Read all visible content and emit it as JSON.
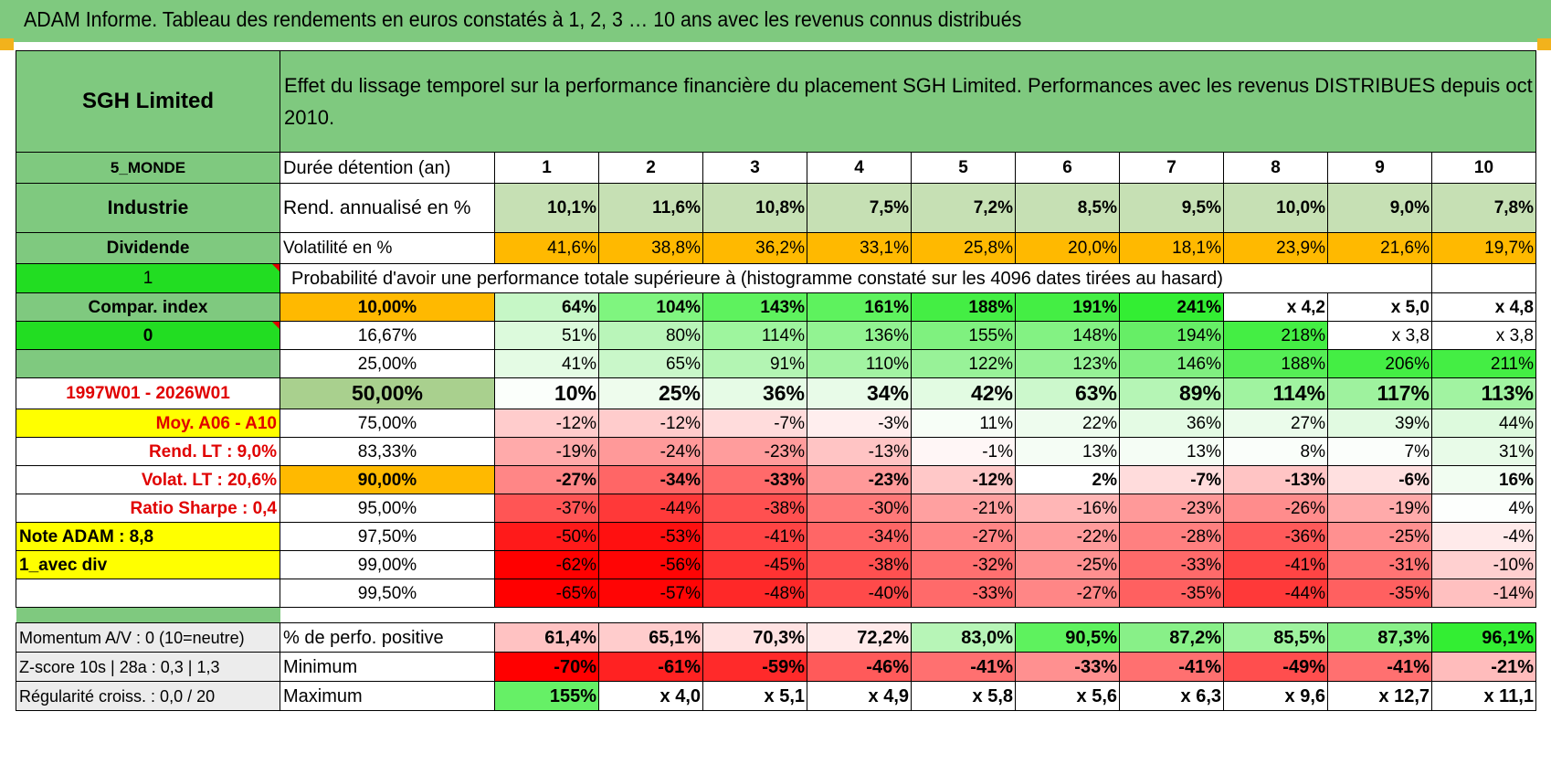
{
  "title": "ADAM Informe. Tableau des rendements en euros constatés à 1, 2, 3 … 10 ans avec les revenus connus distribués",
  "header": {
    "fund": "SGH Limited",
    "description": "Effet du lissage temporel sur la performance financière du placement SGH Limited. Performances avec les revenus DISTRIBUES depuis oct 2010."
  },
  "left_labels": {
    "zone": "5_MONDE",
    "sector": "Industrie",
    "income": "Dividende",
    "flag1": "1",
    "compar": "Compar. index",
    "flag0": "0",
    "period": "1997W01 - 2026W01",
    "moy": "Moy. A06 - A10",
    "rend_lt": "Rend. LT :    9,0%",
    "volat_lt": "Volat. LT :    20,6%",
    "sharpe": "Ratio Sharpe :     0,4",
    "note": "Note ADAM : 8,8",
    "mode": "1_avec div"
  },
  "durations": {
    "label": "Durée détention (an)",
    "years": [
      "1",
      "2",
      "3",
      "4",
      "5",
      "6",
      "7",
      "8",
      "9",
      "10"
    ]
  },
  "rendement": {
    "label": "Rend. annualisé en %",
    "values": [
      "10,1%",
      "11,6%",
      "10,8%",
      "7,5%",
      "7,2%",
      "8,5%",
      "9,5%",
      "10,0%",
      "9,0%",
      "7,8%"
    ]
  },
  "volatilite": {
    "label": "Volatilité en %",
    "values": [
      "41,6%",
      "38,8%",
      "36,2%",
      "33,1%",
      "25,8%",
      "20,0%",
      "18,1%",
      "23,9%",
      "21,6%",
      "19,7%"
    ]
  },
  "probability_title": "Probabilité d'avoir une performance totale supérieure à (histogramme constaté sur les 4096 dates tirées au hasard)",
  "prob_rows": [
    {
      "p": "10,00%",
      "values": [
        "64%",
        "104%",
        "143%",
        "161%",
        "188%",
        "191%",
        "241%",
        "x 4,2",
        "x 5,0",
        "x 4,8"
      ],
      "colors": [
        "#c6f7c6",
        "#7ff57f",
        "#5ef25e",
        "#5ef25e",
        "#44ee44",
        "#44ee44",
        "#33ee33",
        "#ffffff",
        "#ffffff",
        "#ffffff"
      ]
    },
    {
      "p": "16,67%",
      "values": [
        "51%",
        "80%",
        "114%",
        "136%",
        "155%",
        "148%",
        "194%",
        "218%",
        "x 3,8",
        "x 3,8"
      ],
      "colors": [
        "#dcfadc",
        "#b9f5b9",
        "#9ef59e",
        "#92f392",
        "#7ff17f",
        "#83f283",
        "#66ee66",
        "#44ee44",
        "#ffffff",
        "#ffffff"
      ]
    },
    {
      "p": "25,00%",
      "values": [
        "41%",
        "65%",
        "91%",
        "110%",
        "122%",
        "123%",
        "146%",
        "188%",
        "206%",
        "211%"
      ],
      "colors": [
        "#e4fbe4",
        "#c9f7c9",
        "#b3f5b3",
        "#a2f3a2",
        "#98f298",
        "#96f296",
        "#80ef80",
        "#55ee55",
        "#44ee44",
        "#44ee44"
      ]
    },
    {
      "p": "50,00%",
      "values": [
        "10%",
        "25%",
        "36%",
        "34%",
        "42%",
        "63%",
        "89%",
        "114%",
        "117%",
        "113%"
      ],
      "colors": [
        "#fbfffb",
        "#eefced",
        "#e6fbe6",
        "#e8fbe8",
        "#e2fbe2",
        "#ccf8cc",
        "#b5f5b5",
        "#a0f3a0",
        "#9ef29e",
        "#a1f3a1"
      ]
    },
    {
      "p": "75,00%",
      "values": [
        "-12%",
        "-12%",
        "-7%",
        "-3%",
        "11%",
        "22%",
        "36%",
        "27%",
        "39%",
        "44%"
      ],
      "colors": [
        "#ffcccc",
        "#ffcccc",
        "#ffdcdc",
        "#ffeeee",
        "#f7fef7",
        "#eefcee",
        "#e4fbe4",
        "#ebfceb",
        "#e1fae1",
        "#ddfadd"
      ]
    },
    {
      "p": "83,33%",
      "values": [
        "-19%",
        "-24%",
        "-23%",
        "-13%",
        "-1%",
        "13%",
        "13%",
        "8%",
        "7%",
        "31%"
      ],
      "colors": [
        "#ffaaaa",
        "#ff9999",
        "#ff9c9c",
        "#ffc4c4",
        "#fff6f6",
        "#f5fdf5",
        "#f5fdf5",
        "#fafefa",
        "#fbfefb",
        "#e8fbe8"
      ]
    },
    {
      "p": "90,00%",
      "values": [
        "-27%",
        "-34%",
        "-33%",
        "-23%",
        "-12%",
        "2%",
        "-7%",
        "-13%",
        "-6%",
        "16%"
      ],
      "colors": [
        "#ff8686",
        "#ff6666",
        "#ff6a6a",
        "#ff9999",
        "#ffc8c8",
        "#ffffff",
        "#ffdcdc",
        "#ffc4c4",
        "#ffe0e0",
        "#f1fdf1"
      ]
    },
    {
      "p": "95,00%",
      "values": [
        "-37%",
        "-44%",
        "-38%",
        "-30%",
        "-21%",
        "-16%",
        "-23%",
        "-26%",
        "-19%",
        "4%"
      ],
      "colors": [
        "#ff5555",
        "#ff3939",
        "#ff5050",
        "#ff7878",
        "#ffa0a0",
        "#ffb6b6",
        "#ff9999",
        "#ff8c8c",
        "#ffaaaa",
        "#fdfffd"
      ]
    },
    {
      "p": "97,50%",
      "values": [
        "-50%",
        "-53%",
        "-41%",
        "-34%",
        "-27%",
        "-22%",
        "-28%",
        "-36%",
        "-25%",
        "-4%"
      ],
      "colors": [
        "#ff1a1a",
        "#ff1010",
        "#ff4444",
        "#ff6666",
        "#ff8686",
        "#ff9c9c",
        "#ff8080",
        "#ff5a5a",
        "#ff9090",
        "#ffeaea"
      ]
    },
    {
      "p": "99,00%",
      "values": [
        "-62%",
        "-56%",
        "-45%",
        "-38%",
        "-32%",
        "-25%",
        "-33%",
        "-41%",
        "-31%",
        "-10%"
      ],
      "colors": [
        "#ff0000",
        "#ff0505",
        "#ff3333",
        "#ff5050",
        "#ff7070",
        "#ff9090",
        "#ff6a6a",
        "#ff4444",
        "#ff7474",
        "#ffd0d0"
      ]
    },
    {
      "p": "99,50%",
      "values": [
        "-65%",
        "-57%",
        "-48%",
        "-40%",
        "-33%",
        "-27%",
        "-35%",
        "-44%",
        "-35%",
        "-14%"
      ],
      "colors": [
        "#ff0000",
        "#ff0505",
        "#ff2828",
        "#ff4a4a",
        "#ff6a6a",
        "#ff8686",
        "#ff6060",
        "#ff3939",
        "#ff6060",
        "#ffc0c0"
      ]
    }
  ],
  "bottom": {
    "momentum": "Momentum A/V : 0 (10=neutre)",
    "zscore": "Z-score 10s | 28a : 0,3 | 1,3",
    "regularite": "Régularité croiss. : 0,0 / 20",
    "positive_label": "% de perfo. positive",
    "positive": [
      "61,4%",
      "65,1%",
      "70,3%",
      "72,2%",
      "83,0%",
      "90,5%",
      "87,2%",
      "85,5%",
      "87,3%",
      "96,1%"
    ],
    "positive_colors": [
      "#ffc2c2",
      "#ffcccc",
      "#ffe2e2",
      "#ffeaea",
      "#b7f5b7",
      "#5ef25e",
      "#88f088",
      "#9ef39e",
      "#88f088",
      "#33ee33"
    ],
    "minimum_label": "Minimum",
    "minimum": [
      "-70%",
      "-61%",
      "-59%",
      "-46%",
      "-41%",
      "-33%",
      "-41%",
      "-49%",
      "-41%",
      "-21%"
    ],
    "minimum_colors": [
      "#ff0000",
      "#ff2222",
      "#ff2a2a",
      "#ff5a5a",
      "#ff7070",
      "#ff9090",
      "#ff7070",
      "#ff4e4e",
      "#ff7070",
      "#ffbcbc"
    ],
    "maximum_label": "Maximum",
    "maximum": [
      "155%",
      "x 4,0",
      "x 5,1",
      "x 4,9",
      "x 5,8",
      "x 5,6",
      "x 6,3",
      "x 9,6",
      "x 12,7",
      "x 11,1"
    ],
    "maximum_colors": [
      "#66f066",
      "#ffffff",
      "#ffffff",
      "#ffffff",
      "#ffffff",
      "#ffffff",
      "#ffffff",
      "#ffffff",
      "#ffffff",
      "#ffffff"
    ]
  }
}
